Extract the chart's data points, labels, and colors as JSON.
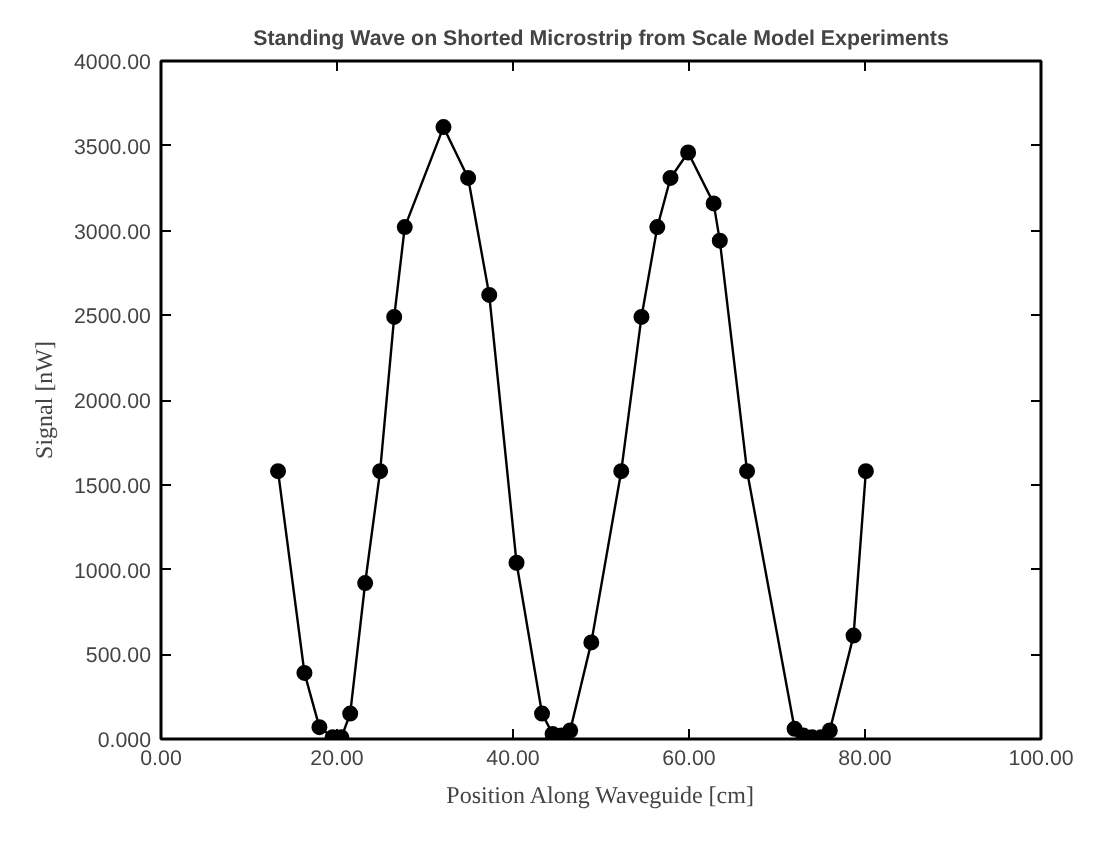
{
  "chart_data": {
    "type": "line",
    "title": "Standing Wave on Shorted Microstrip from Scale Model Experiments",
    "xlabel": "Position Along Waveguide [cm]",
    "ylabel": "Signal [nW]",
    "x": [
      13.3,
      16.3,
      18.0,
      19.5,
      20.5,
      21.5,
      23.2,
      24.9,
      26.5,
      27.7,
      32.1,
      34.9,
      37.3,
      40.4,
      43.3,
      44.5,
      45.5,
      46.5,
      48.9,
      52.3,
      54.6,
      56.4,
      57.9,
      59.9,
      62.8,
      63.5,
      66.6,
      72.0,
      73.0,
      74.0,
      75.0,
      76.0,
      78.7,
      80.1
    ],
    "series": [
      {
        "color": "#000000",
        "values": [
          1580,
          390,
          70,
          10,
          10,
          150,
          920,
          1580,
          2490,
          3020,
          3610,
          3310,
          2620,
          1040,
          150,
          30,
          20,
          50,
          570,
          1580,
          2490,
          3020,
          3310,
          3460,
          3160,
          2940,
          1580,
          60,
          20,
          10,
          10,
          50,
          610,
          1580
        ]
      }
    ],
    "xlim": [
      0,
      100
    ],
    "ylim": [
      0,
      4000
    ],
    "xticks": [
      {
        "value": 0,
        "label": "0.00"
      },
      {
        "value": 20,
        "label": "20.00"
      },
      {
        "value": 40,
        "label": "40.00"
      },
      {
        "value": 60,
        "label": "60.00"
      },
      {
        "value": 80,
        "label": "80.00"
      },
      {
        "value": 100,
        "label": "100.00"
      }
    ],
    "yticks": [
      {
        "value": 0,
        "label": "0.000"
      },
      {
        "value": 500,
        "label": "500.00"
      },
      {
        "value": 1000,
        "label": "1000.00"
      },
      {
        "value": 1500,
        "label": "1500.00"
      },
      {
        "value": 2000,
        "label": "2000.00"
      },
      {
        "value": 2500,
        "label": "2500.00"
      },
      {
        "value": 3000,
        "label": "3000.00"
      },
      {
        "value": 3500,
        "label": "3500.00"
      },
      {
        "value": 4000,
        "label": "4000.00"
      }
    ],
    "marker": "circle",
    "line_style": "solid",
    "grid": false
  }
}
